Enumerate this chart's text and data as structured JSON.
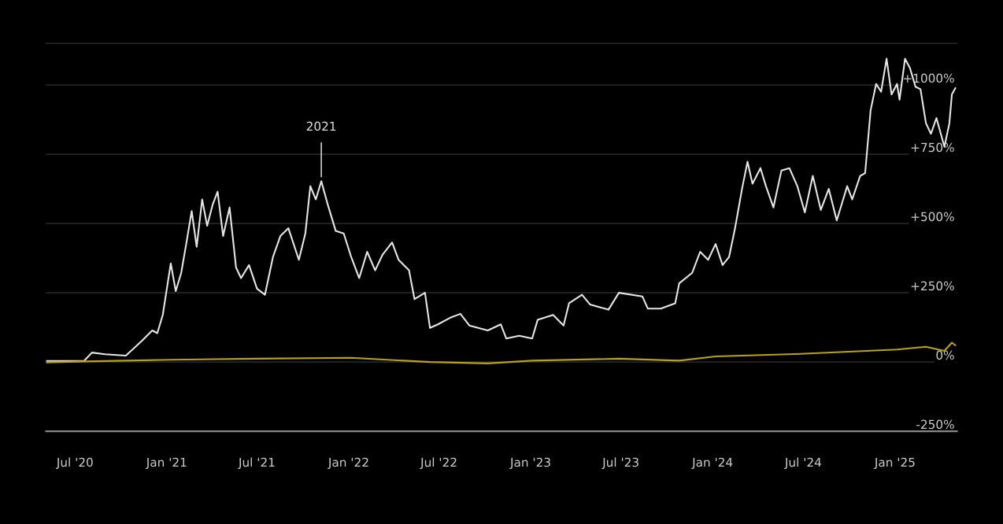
{
  "chart_data": {
    "type": "line",
    "series": [
      {
        "color": "#e6e6e6",
        "x": [
          "2020-05-04",
          "2020-07-19",
          "2020-08-04",
          "2020-08-30",
          "2020-10-11",
          "2020-11-12",
          "2020-12-03",
          "2020-12-13",
          "2020-12-24",
          "2021-01-09",
          "2021-01-19",
          "2021-01-30",
          "2021-02-09",
          "2021-02-20",
          "2021-03-02",
          "2021-03-13",
          "2021-03-23",
          "2021-04-03",
          "2021-04-13",
          "2021-04-24",
          "2021-05-07",
          "2021-05-20",
          "2021-05-30",
          "2021-06-15",
          "2021-07-01",
          "2021-07-17",
          "2021-08-02",
          "2021-08-17",
          "2021-09-02",
          "2021-09-23",
          "2021-10-06",
          "2021-10-16",
          "2021-10-27",
          "2021-11-07",
          "2021-11-20",
          "2021-12-06",
          "2021-12-22",
          "2022-01-06",
          "2022-01-22",
          "2022-02-07",
          "2022-02-23",
          "2022-03-10",
          "2022-03-29",
          "2022-04-11",
          "2022-05-02",
          "2022-05-13",
          "2022-06-03",
          "2022-06-13",
          "2022-06-29",
          "2022-07-25",
          "2022-08-13",
          "2022-08-31",
          "2022-10-07",
          "2022-11-02",
          "2022-11-13",
          "2022-12-09",
          "2023-01-04",
          "2023-01-15",
          "2023-02-15",
          "2023-03-08",
          "2023-03-19",
          "2023-04-14",
          "2023-04-30",
          "2023-06-06",
          "2023-06-27",
          "2023-08-13",
          "2023-08-24",
          "2023-09-19",
          "2023-10-18",
          "2023-10-26",
          "2023-11-21",
          "2023-12-07",
          "2023-12-23",
          "2024-01-07",
          "2024-01-21",
          "2024-02-03",
          "2024-02-15",
          "2024-02-29",
          "2024-03-11",
          "2024-03-21",
          "2024-04-06",
          "2024-04-17",
          "2024-05-02",
          "2024-05-18",
          "2024-06-03",
          "2024-06-19",
          "2024-07-04",
          "2024-07-20",
          "2024-08-05",
          "2024-08-21",
          "2024-09-06",
          "2024-09-27",
          "2024-10-07",
          "2024-10-23",
          "2024-11-02",
          "2024-11-13",
          "2024-11-24",
          "2024-12-04",
          "2024-12-15",
          "2024-12-25",
          "2025-01-05",
          "2025-01-10",
          "2025-01-21",
          "2025-01-31",
          "2025-02-11",
          "2025-02-21",
          "2025-03-04",
          "2025-03-14",
          "2025-03-25",
          "2025-04-10",
          "2025-04-20",
          "2025-04-25",
          "2025-05-02"
        ],
        "values": [
          4,
          4,
          34,
          28,
          23,
          76,
          114,
          104,
          170,
          356,
          256,
          322,
          426,
          545,
          416,
          587,
          492,
          568,
          615,
          455,
          558,
          341,
          303,
          350,
          265,
          243,
          379,
          455,
          483,
          369,
          464,
          635,
          587,
          653,
          568,
          473,
          464,
          379,
          303,
          398,
          331,
          388,
          432,
          369,
          331,
          227,
          250,
          123,
          136,
          161,
          174,
          132,
          114,
          136,
          85,
          95,
          85,
          152,
          170,
          132,
          212,
          243,
          208,
          189,
          250,
          237,
          193,
          193,
          212,
          284,
          322,
          398,
          369,
          426,
          350,
          379,
          483,
          625,
          723,
          644,
          700,
          635,
          558,
          691,
          700,
          635,
          540,
          672,
          549,
          625,
          511,
          635,
          587,
          672,
          682,
          909,
          1004,
          976,
          1095,
          966,
          1004,
          947,
          1095,
          1061,
          994,
          985,
          862,
          824,
          881,
          777,
          862,
          966,
          989
        ]
      },
      {
        "color": "#b8a21c",
        "x": [
          "2020-05-04",
          "2020-07-19",
          "2020-10-11",
          "2021-01-09",
          "2021-07-01",
          "2022-01-06",
          "2022-06-13",
          "2022-10-07",
          "2023-01-04",
          "2023-06-27",
          "2023-10-26",
          "2024-01-07",
          "2024-07-04",
          "2025-01-05",
          "2025-03-04",
          "2025-04-10",
          "2025-04-25",
          "2025-05-02"
        ],
        "values": [
          -2,
          2,
          5,
          8,
          12,
          15,
          0,
          -5,
          5,
          12,
          5,
          20,
          30,
          45,
          55,
          40,
          70,
          60
        ]
      }
    ],
    "xlim": [
      "2020-05-04",
      "2025-05-05"
    ],
    "xticks": [
      {
        "value": "2020-07-01",
        "label": "Jul '20"
      },
      {
        "value": "2021-01-01",
        "label": "Jan '21"
      },
      {
        "value": "2021-07-01",
        "label": "Jul '21"
      },
      {
        "value": "2022-01-01",
        "label": "Jan '22"
      },
      {
        "value": "2022-07-01",
        "label": "Jul '22"
      },
      {
        "value": "2023-01-01",
        "label": "Jan '23"
      },
      {
        "value": "2023-07-01",
        "label": "Jul '23"
      },
      {
        "value": "2024-01-01",
        "label": "Jan '24"
      },
      {
        "value": "2024-07-01",
        "label": "Jul '24"
      },
      {
        "value": "2025-01-01",
        "label": "Jan '25"
      }
    ],
    "ylim": [
      -250,
      1150
    ],
    "yticks": [
      {
        "value": -250,
        "label": "-250%"
      },
      {
        "value": 0,
        "label": "0%"
      },
      {
        "value": 250,
        "label": "+250%"
      },
      {
        "value": 500,
        "label": "+500%"
      },
      {
        "value": 750,
        "label": "+750%"
      },
      {
        "value": 1000,
        "label": "+1000%"
      }
    ],
    "grid": "y",
    "line_style": "solid",
    "annotations": [
      {
        "text": "2021",
        "x": "2021-11-07",
        "y": 653
      }
    ]
  }
}
